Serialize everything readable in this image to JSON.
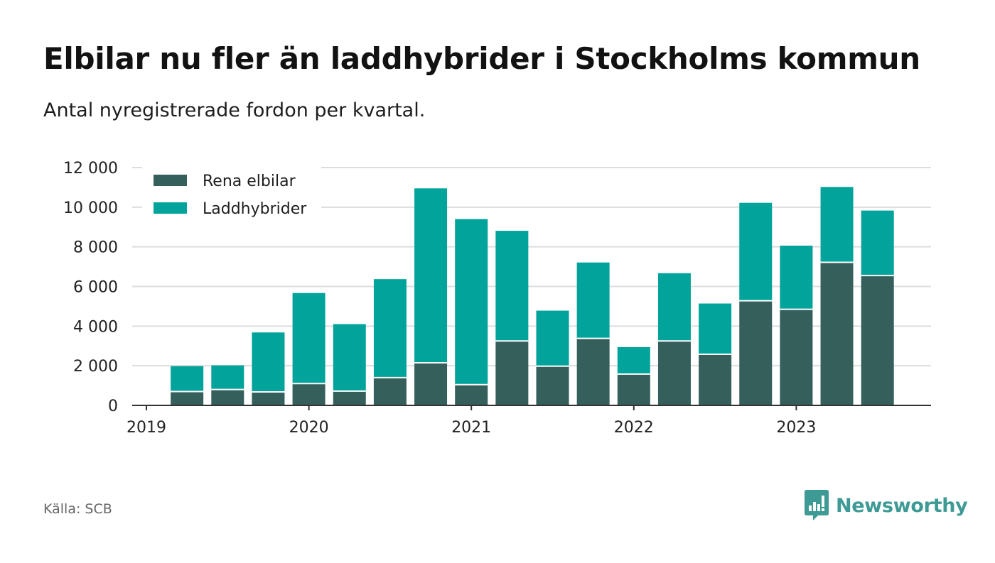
{
  "title": "Elbilar nu fler än laddhybrider i Stockholms kommun",
  "subtitle": "Antal nyregistrerade fordon per kvartal.",
  "source": "Källa: SCB",
  "brand": {
    "name": "Newsworthy",
    "color": "#3d9a94"
  },
  "colors": {
    "elbilar": "#355f5b",
    "laddhybrider": "#01a39a",
    "grid": "#dddddd",
    "axis": "#333333"
  },
  "chart_data": {
    "type": "bar",
    "stacked": true,
    "title": "Elbilar nu fler än laddhybrider i Stockholms kommun",
    "subtitle": "Antal nyregistrerade fordon per kvartal.",
    "xlabel": "",
    "ylabel": "",
    "ylim": [
      0,
      12000
    ],
    "yticks": [
      0,
      2000,
      4000,
      6000,
      8000,
      10000,
      12000
    ],
    "ytick_labels": [
      "0",
      "2 000",
      "4 000",
      "6 000",
      "8 000",
      "10 000",
      "12 000"
    ],
    "xticks": [
      "2019",
      "2020",
      "2021",
      "2022",
      "2023"
    ],
    "xlim_year": [
      2019.0,
      2023.85
    ],
    "legend_position": "top-left",
    "categories": [
      "2019 Q2",
      "2019 Q3",
      "2019 Q4",
      "2020 Q1",
      "2020 Q2",
      "2020 Q3",
      "2020 Q4",
      "2021 Q1",
      "2021 Q2",
      "2021 Q3",
      "2021 Q4",
      "2022 Q1",
      "2022 Q2",
      "2022 Q3",
      "2022 Q4",
      "2023 Q1",
      "2023 Q2",
      "2023 Q3"
    ],
    "x": [
      2019.25,
      2019.5,
      2019.75,
      2020.0,
      2020.25,
      2020.5,
      2020.75,
      2021.0,
      2021.25,
      2021.5,
      2021.75,
      2022.0,
      2022.25,
      2022.5,
      2022.75,
      2023.0,
      2023.25,
      2023.5
    ],
    "series": [
      {
        "name": "Rena elbilar",
        "key": "elbilar",
        "values": [
          700,
          800,
          680,
          1100,
          720,
          1400,
          2150,
          1050,
          3250,
          1980,
          3380,
          1580,
          3250,
          2580,
          5280,
          4850,
          7220,
          6550
        ]
      },
      {
        "name": "Laddhybrider",
        "key": "laddhybrider",
        "values": [
          1280,
          1220,
          3000,
          4570,
          3380,
          4970,
          8800,
          8350,
          5560,
          2800,
          3830,
          1360,
          3420,
          2560,
          4940,
          3210,
          3800,
          3280
        ]
      }
    ]
  }
}
